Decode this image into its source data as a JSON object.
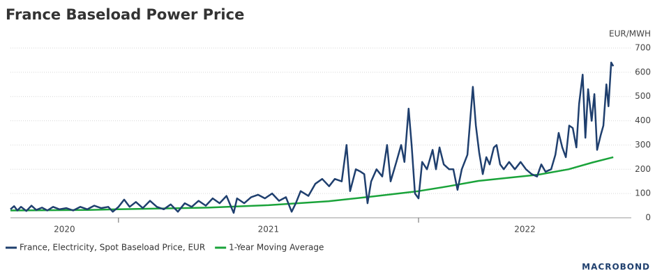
{
  "chart_data": {
    "type": "line",
    "title": "France Baseload Power Price",
    "y_axis_label": "EUR/MWH",
    "brand": "MACROBOND",
    "xlim": [
      2020.64,
      2022.709
    ],
    "xticks": [
      2021,
      2022
    ],
    "xlabels": [
      {
        "value": 2020,
        "label": "2020"
      },
      {
        "value": 2021,
        "label": "2021"
      },
      {
        "value": 2022,
        "label": "2022"
      }
    ],
    "ylim": [
      0,
      700
    ],
    "yticks": [
      0,
      100,
      200,
      300,
      400,
      500,
      600,
      700
    ],
    "grid": true,
    "series": [
      {
        "name": "France, Electricity, Spot Baseload Price, EUR",
        "color": "#1f3f6e",
        "x": [
          2020.64,
          2020.652,
          2020.663,
          2020.675,
          2020.693,
          2020.71,
          2020.726,
          2020.745,
          2020.763,
          2020.782,
          2020.803,
          2020.826,
          2020.849,
          2020.873,
          2020.896,
          2020.919,
          2020.942,
          2020.966,
          2020.981,
          2021.0,
          2021.019,
          2021.037,
          2021.058,
          2021.081,
          2021.105,
          2021.128,
          2021.151,
          2021.174,
          2021.198,
          2021.221,
          2021.244,
          2021.267,
          2021.291,
          2021.314,
          2021.337,
          2021.36,
          2021.384,
          2021.395,
          2021.419,
          2021.442,
          2021.465,
          2021.488,
          2021.512,
          2021.535,
          2021.558,
          2021.577,
          2021.591,
          2021.607,
          2021.633,
          2021.656,
          2021.679,
          2021.702,
          2021.721,
          2021.744,
          2021.76,
          2021.772,
          2021.791,
          2021.807,
          2021.819,
          2021.83,
          2021.842,
          2021.86,
          2021.879,
          2021.895,
          2021.907,
          2021.926,
          2021.942,
          2021.953,
          2021.967,
          2021.977,
          2021.988,
          2022.0,
          2022.012,
          2022.028,
          2022.047,
          2022.058,
          2022.07,
          2022.084,
          2022.102,
          2022.116,
          2022.13,
          2022.144,
          2022.163,
          2022.181,
          2022.191,
          2022.202,
          2022.214,
          2022.226,
          2022.237,
          2022.251,
          2022.26,
          2022.272,
          2022.284,
          2022.302,
          2022.321,
          2022.34,
          2022.358,
          2022.377,
          2022.395,
          2022.409,
          2022.423,
          2022.442,
          2022.456,
          2022.467,
          2022.479,
          2022.491,
          2022.502,
          2022.514,
          2022.526,
          2022.535,
          2022.547,
          2022.556,
          2022.565,
          2022.577,
          2022.586,
          2022.595,
          2022.607,
          2022.616,
          2022.626,
          2022.633,
          2022.642,
          2022.649
        ],
        "values": [
          35,
          48,
          30,
          45,
          28,
          50,
          32,
          42,
          30,
          45,
          35,
          40,
          30,
          45,
          35,
          50,
          40,
          45,
          25,
          45,
          75,
          45,
          65,
          40,
          70,
          45,
          35,
          55,
          25,
          60,
          45,
          70,
          50,
          80,
          60,
          90,
          20,
          80,
          60,
          85,
          95,
          80,
          100,
          70,
          85,
          25,
          60,
          110,
          90,
          140,
          160,
          130,
          160,
          150,
          300,
          110,
          200,
          190,
          180,
          60,
          150,
          200,
          170,
          300,
          150,
          230,
          300,
          230,
          450,
          300,
          100,
          80,
          230,
          200,
          280,
          200,
          290,
          220,
          200,
          200,
          115,
          200,
          260,
          540,
          380,
          270,
          180,
          250,
          220,
          290,
          300,
          220,
          200,
          230,
          200,
          230,
          200,
          180,
          170,
          220,
          190,
          200,
          260,
          350,
          290,
          250,
          380,
          370,
          290,
          470,
          590,
          330,
          530,
          400,
          510,
          280,
          340,
          380,
          550,
          460,
          640,
          625
        ]
      },
      {
        "name": "1-Year Moving Average",
        "color": "#1aa33a",
        "x": [
          2020.64,
          2020.9,
          2021.0,
          2021.3,
          2021.5,
          2021.7,
          2021.85,
          2022.0,
          2022.1,
          2022.2,
          2022.3,
          2022.4,
          2022.5,
          2022.58,
          2022.649
        ],
        "values": [
          30,
          32,
          35,
          42,
          52,
          68,
          88,
          110,
          130,
          152,
          165,
          178,
          200,
          228,
          250
        ]
      }
    ]
  }
}
